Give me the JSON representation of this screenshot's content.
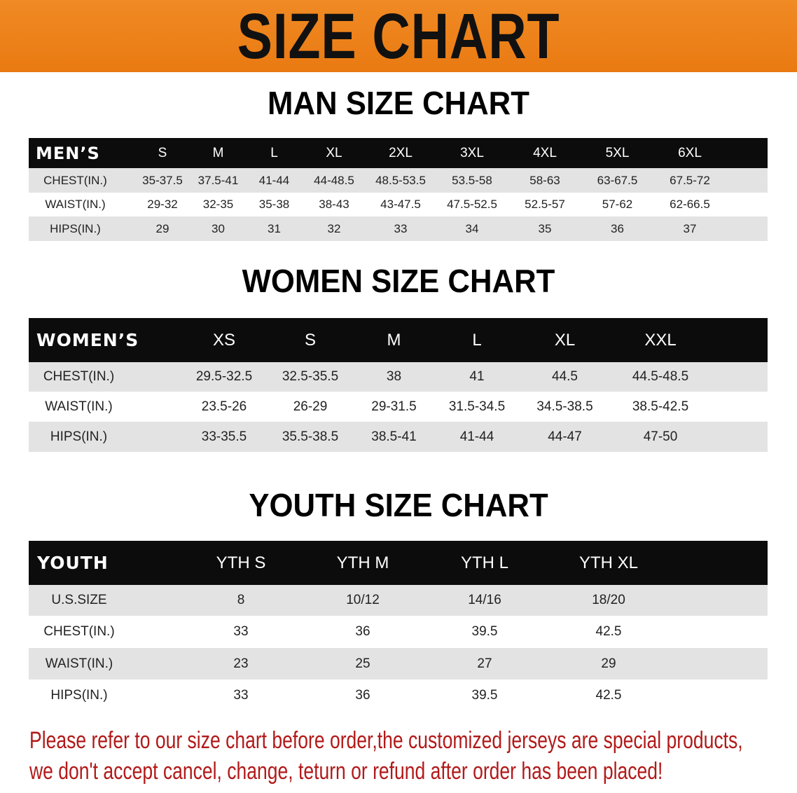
{
  "banner_title": "SIZE CHART",
  "men": {
    "title": "MAN SIZE CHART",
    "header": [
      "MEN’S",
      "S",
      "M",
      "L",
      "XL",
      "2XL",
      "3XL",
      "4XL",
      "5XL",
      "6XL"
    ],
    "rows": [
      [
        "CHEST(IN.)",
        "35-37.5",
        "37.5-41",
        "41-44",
        "44-48.5",
        "48.5-53.5",
        "53.5-58",
        "58-63",
        "63-67.5",
        "67.5-72"
      ],
      [
        "WAIST(IN.)",
        "29-32",
        "32-35",
        "35-38",
        "38-43",
        "43-47.5",
        "47.5-52.5",
        "52.5-57",
        "57-62",
        "62-66.5"
      ],
      [
        "HIPS(IN.)",
        "29",
        "30",
        "31",
        "32",
        "33",
        "34",
        "35",
        "36",
        "37"
      ]
    ]
  },
  "women": {
    "title": "WOMEN SIZE CHART",
    "header": [
      "WOMEN’S",
      "XS",
      "S",
      "M",
      "L",
      "XL",
      "XXL"
    ],
    "rows": [
      [
        "CHEST(IN.)",
        "29.5-32.5",
        "32.5-35.5",
        "38",
        "41",
        "44.5",
        "44.5-48.5"
      ],
      [
        "WAIST(IN.)",
        "23.5-26",
        "26-29",
        "29-31.5",
        "31.5-34.5",
        "34.5-38.5",
        "38.5-42.5"
      ],
      [
        "HIPS(IN.)",
        "33-35.5",
        "35.5-38.5",
        "38.5-41",
        "41-44",
        "44-47",
        "47-50"
      ]
    ]
  },
  "youth": {
    "title": "YOUTH SIZE CHART",
    "header": [
      "YOUTH",
      "YTH S",
      "YTH M",
      "YTH L",
      "YTH XL"
    ],
    "rows": [
      [
        "U.S.SIZE",
        "8",
        "10/12",
        "14/16",
        "18/20"
      ],
      [
        "CHEST(IN.)",
        "33",
        "36",
        "39.5",
        "42.5"
      ],
      [
        "WAIST(IN.)",
        "23",
        "25",
        "27",
        "29"
      ],
      [
        "HIPS(IN.)",
        "33",
        "36",
        "39.5",
        "42.5"
      ]
    ]
  },
  "footer": {
    "line1": "Please refer to our size chart before order,the customized jerseys are special products,",
    "line2": "we don't accept cancel, change, teturn or refund after order has been placed!"
  },
  "colors": {
    "banner": "#ee8118",
    "header_row": "#0c0c0c",
    "stripe": "#e3e3e3",
    "notice": "#b21a1a"
  }
}
